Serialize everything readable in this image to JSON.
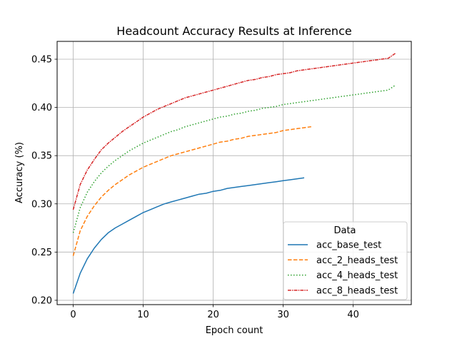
{
  "chart_data": {
    "type": "line",
    "title": "Headcount Accuracy Results at Inference",
    "xlabel": "Epoch count",
    "ylabel": "Accuracy (%)",
    "xlim": [
      -2.3,
      48.3
    ],
    "ylim": [
      0.1955,
      0.4685
    ],
    "xticks": [
      0,
      10,
      20,
      30,
      40
    ],
    "yticks": [
      0.2,
      0.25,
      0.3,
      0.35,
      0.4,
      0.45
    ],
    "ytick_labels": [
      "0.20",
      "0.25",
      "0.30",
      "0.35",
      "0.40",
      "0.45"
    ],
    "grid": true,
    "legend": {
      "title": "Data",
      "placement": "lower-right"
    },
    "series": [
      {
        "name": "acc_base_test",
        "color": "#1f77b4",
        "dash": "solid",
        "x": [
          0,
          1,
          2,
          3,
          4,
          5,
          6,
          7,
          8,
          9,
          10,
          11,
          12,
          13,
          14,
          15,
          16,
          17,
          18,
          19,
          20,
          21,
          22,
          23,
          24,
          25,
          26,
          27,
          28,
          29,
          30,
          31,
          32,
          33
        ],
        "y": [
          0.207,
          0.228,
          0.243,
          0.254,
          0.263,
          0.27,
          0.275,
          0.279,
          0.283,
          0.287,
          0.291,
          0.294,
          0.297,
          0.3,
          0.302,
          0.304,
          0.306,
          0.308,
          0.31,
          0.311,
          0.313,
          0.314,
          0.316,
          0.317,
          0.318,
          0.319,
          0.32,
          0.321,
          0.322,
          0.323,
          0.324,
          0.325,
          0.326,
          0.327
        ]
      },
      {
        "name": "acc_2_heads_test",
        "color": "#ff7f0e",
        "dash": "dashed",
        "x": [
          0,
          1,
          2,
          3,
          4,
          5,
          6,
          7,
          8,
          9,
          10,
          11,
          12,
          13,
          14,
          15,
          16,
          17,
          18,
          19,
          20,
          21,
          22,
          23,
          24,
          25,
          26,
          27,
          28,
          29,
          30,
          31,
          32,
          33,
          34
        ],
        "y": [
          0.246,
          0.272,
          0.287,
          0.298,
          0.307,
          0.314,
          0.32,
          0.325,
          0.33,
          0.334,
          0.338,
          0.341,
          0.344,
          0.347,
          0.35,
          0.352,
          0.354,
          0.356,
          0.358,
          0.36,
          0.362,
          0.364,
          0.365,
          0.367,
          0.368,
          0.37,
          0.371,
          0.372,
          0.373,
          0.374,
          0.376,
          0.377,
          0.378,
          0.379,
          0.38
        ]
      },
      {
        "name": "acc_4_heads_test",
        "color": "#2ca02c",
        "dash": "dotted",
        "x": [
          0,
          1,
          2,
          3,
          4,
          5,
          6,
          7,
          8,
          9,
          10,
          11,
          12,
          13,
          14,
          15,
          16,
          17,
          18,
          19,
          20,
          21,
          22,
          23,
          24,
          25,
          26,
          27,
          28,
          29,
          30,
          31,
          32,
          33,
          34,
          35,
          36,
          37,
          38,
          39,
          40,
          41,
          42,
          43,
          44,
          45,
          46
        ],
        "y": [
          0.27,
          0.296,
          0.312,
          0.323,
          0.332,
          0.339,
          0.345,
          0.35,
          0.355,
          0.359,
          0.363,
          0.366,
          0.369,
          0.372,
          0.375,
          0.377,
          0.38,
          0.382,
          0.384,
          0.386,
          0.388,
          0.39,
          0.391,
          0.393,
          0.394,
          0.396,
          0.397,
          0.399,
          0.4,
          0.401,
          0.403,
          0.404,
          0.405,
          0.406,
          0.407,
          0.408,
          0.409,
          0.41,
          0.411,
          0.412,
          0.413,
          0.414,
          0.415,
          0.416,
          0.417,
          0.418,
          0.423
        ]
      },
      {
        "name": "acc_8_heads_test",
        "color": "#d62728",
        "dash": "dashdot",
        "x": [
          0,
          1,
          2,
          3,
          4,
          5,
          6,
          7,
          8,
          9,
          10,
          11,
          12,
          13,
          14,
          15,
          16,
          17,
          18,
          19,
          20,
          21,
          22,
          23,
          24,
          25,
          26,
          27,
          28,
          29,
          30,
          31,
          32,
          33,
          34,
          35,
          36,
          37,
          38,
          39,
          40,
          41,
          42,
          43,
          44,
          45,
          46
        ],
        "y": [
          0.294,
          0.32,
          0.335,
          0.346,
          0.356,
          0.363,
          0.369,
          0.375,
          0.38,
          0.385,
          0.39,
          0.394,
          0.398,
          0.401,
          0.404,
          0.407,
          0.41,
          0.412,
          0.414,
          0.416,
          0.418,
          0.42,
          0.422,
          0.424,
          0.426,
          0.428,
          0.429,
          0.431,
          0.432,
          0.434,
          0.435,
          0.436,
          0.438,
          0.439,
          0.44,
          0.441,
          0.442,
          0.443,
          0.444,
          0.445,
          0.446,
          0.447,
          0.448,
          0.449,
          0.45,
          0.451,
          0.456
        ]
      }
    ]
  }
}
